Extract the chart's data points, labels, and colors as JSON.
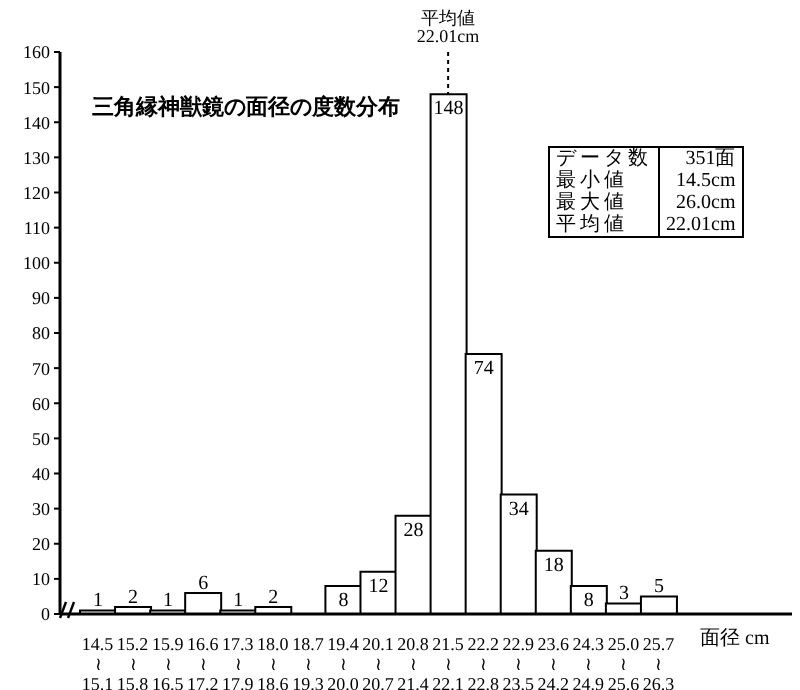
{
  "chart_data": {
    "type": "bar",
    "title": "三角縁神獣鏡の面径の度数分布",
    "xlabel": "面径 cm",
    "categories": [
      "14.5 ≀ 15.1",
      "15.2 ≀ 15.8",
      "15.9 ≀ 16.5",
      "16.6 ≀ 17.2",
      "17.3 ≀ 17.9",
      "18.0 ≀ 18.6",
      "18.7 ≀ 19.3",
      "19.4 ≀ 20.0",
      "20.1 ≀ 20.7",
      "20.8 ≀ 21.4",
      "21.5 ≀ 22.1",
      "22.2 ≀ 22.8",
      "22.9 ≀ 23.5",
      "23.6 ≀ 24.2",
      "24.3 ≀ 24.9",
      "25.0 ≀ 25.6",
      "25.7 ≀ 26.3"
    ],
    "values": [
      1,
      2,
      1,
      6,
      1,
      2,
      0,
      8,
      12,
      28,
      148,
      74,
      34,
      18,
      8,
      3,
      5
    ],
    "value_labels": [
      "1",
      "2",
      "1",
      "6",
      "1",
      "2",
      null,
      "8",
      "12",
      "28",
      "148",
      "74",
      "34",
      "18",
      "8",
      "3",
      "5"
    ],
    "color": "#ffffff",
    "ylim": [
      0,
      160
    ],
    "yticks": [
      0,
      10,
      20,
      30,
      40,
      50,
      60,
      70,
      80,
      90,
      100,
      110,
      120,
      130,
      140,
      150,
      160
    ],
    "ref_lines": [
      {
        "axis": "x",
        "value": "21.5 ≀ 22.1",
        "label": "平均値 22.01cm",
        "line_style": "dotted"
      }
    ],
    "annotations": [
      "データ数 351面",
      "最小値 14.5cm",
      "最大値 26.0cm",
      "平均値 22.01cm"
    ]
  }
}
